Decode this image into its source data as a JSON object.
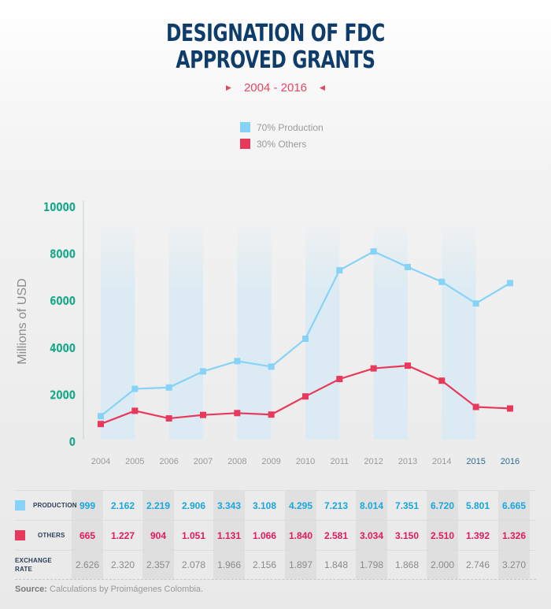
{
  "header": {
    "title_line1": "DESIGNATION OF FDC",
    "title_line2": "APPROVED GRANTS",
    "subtitle": "2004 - 2016",
    "subtitle_left_icon": "triangle-right-icon",
    "subtitle_right_icon": "triangle-left-icon"
  },
  "colors": {
    "production": "#86d3f7",
    "others": "#e8395d",
    "title": "#0f3d6b",
    "axis_ticks": "#17a88a",
    "highlight_year": "#2c6c93",
    "band": "#dcebf3"
  },
  "chart_data": {
    "type": "line",
    "title": "DESIGNATION OF FDC APPROVED GRANTS",
    "subtitle": "2004 - 2016",
    "xlabel": "",
    "ylabel": "Millions of USD",
    "ylim": [
      0,
      10000
    ],
    "yticks": [
      "0",
      "2000",
      "4000",
      "6000",
      "8000",
      "10000"
    ],
    "categories": [
      "2004",
      "2005",
      "2006",
      "2007",
      "2008",
      "2009",
      "2010",
      "2011",
      "2012",
      "2013",
      "2014",
      "2015",
      "2016"
    ],
    "highlighted_categories": [
      "2015",
      "2016"
    ],
    "legend": [
      "70% Production",
      "30% Others"
    ],
    "legend_position": "top-center",
    "grid": false,
    "series": [
      {
        "name": "70% Production",
        "values": [
          999,
          2162,
          2219,
          2906,
          3343,
          3108,
          4295,
          7213,
          8014,
          7351,
          6720,
          5801,
          6665
        ]
      },
      {
        "name": "30% Others",
        "values": [
          665,
          1227,
          904,
          1051,
          1131,
          1066,
          1840,
          2581,
          3034,
          3150,
          2510,
          1392,
          1326
        ]
      }
    ]
  },
  "table": {
    "rows": [
      {
        "label": "PRODUCTION",
        "values": [
          "999",
          "2.162",
          "2.219",
          "2.906",
          "3.343",
          "3.108",
          "4.295",
          "7.213",
          "8.014",
          "7.351",
          "6.720",
          "5.801",
          "6.665"
        ]
      },
      {
        "label": "OTHERS",
        "values": [
          "665",
          "1.227",
          "904",
          "1.051",
          "1.131",
          "1.066",
          "1.840",
          "2.581",
          "3.034",
          "3.150",
          "2.510",
          "1.392",
          "1.326"
        ]
      },
      {
        "label_line1": "EXCHANGE",
        "label_line2": "RATE",
        "values": [
          "2.626",
          "2.320",
          "2.357",
          "2.078",
          "1.966",
          "2.156",
          "1.897",
          "1.848",
          "1.798",
          "1.868",
          "2.000",
          "2.746",
          "3.270"
        ]
      }
    ]
  },
  "footer": {
    "source_label": "Source:",
    "source_text": " Calculations by Proimágenes Colombia."
  }
}
